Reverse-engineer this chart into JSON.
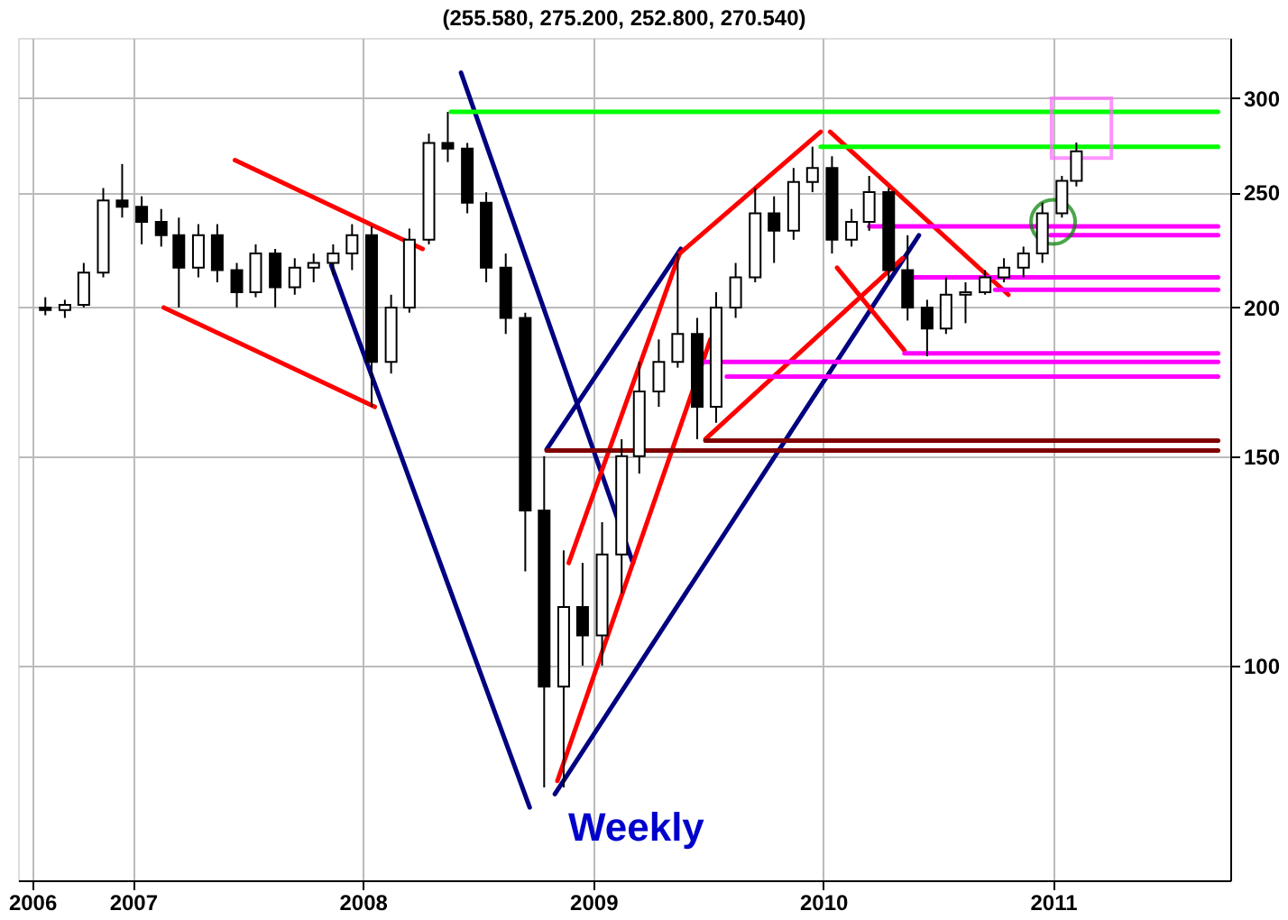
{
  "chart_data": {
    "type": "candlestick",
    "title": "(255.580, 275.200, 252.800, 270.540)",
    "x": [
      "2006-08-15",
      "2006-09-15",
      "2006-10-15",
      "2006-11-15",
      "2006-12-15",
      "2007-01-15",
      "2007-02-15",
      "2007-03-15",
      "2007-04-15",
      "2007-05-15",
      "2007-06-15",
      "2007-07-15",
      "2007-08-15",
      "2007-09-15",
      "2007-10-15",
      "2007-11-15",
      "2007-12-15",
      "2008-01-15",
      "2008-02-15",
      "2008-03-15",
      "2008-04-15",
      "2008-05-15",
      "2008-06-15",
      "2008-07-15",
      "2008-08-15",
      "2008-09-15",
      "2008-10-15",
      "2008-11-15",
      "2008-12-15",
      "2009-01-15",
      "2009-02-15",
      "2009-03-15",
      "2009-04-15",
      "2009-05-15",
      "2009-06-15",
      "2009-07-15",
      "2009-08-15",
      "2009-09-15",
      "2009-10-15",
      "2009-11-15",
      "2009-12-15",
      "2010-01-15",
      "2010-02-15",
      "2010-03-15",
      "2010-04-15",
      "2010-05-15",
      "2010-06-15",
      "2010-07-15",
      "2010-08-15",
      "2010-09-15",
      "2010-10-15",
      "2010-11-15",
      "2010-12-15",
      "2011-01-15",
      "2011-02-07"
    ],
    "ohlc": [
      [
        200,
        204,
        197,
        199
      ],
      [
        199,
        203,
        196,
        201
      ],
      [
        201,
        218,
        200,
        214
      ],
      [
        214,
        252,
        212,
        246
      ],
      [
        246,
        264,
        238,
        243
      ],
      [
        243,
        248,
        226,
        236
      ],
      [
        236,
        242,
        225,
        230
      ],
      [
        230,
        238,
        200,
        216
      ],
      [
        216,
        235,
        212,
        230
      ],
      [
        230,
        235,
        210,
        215
      ],
      [
        215,
        218,
        200,
        206
      ],
      [
        206,
        226,
        204,
        222
      ],
      [
        222,
        224,
        200,
        208
      ],
      [
        208,
        220,
        205,
        216
      ],
      [
        216,
        222,
        210,
        218
      ],
      [
        218,
        226,
        213,
        222
      ],
      [
        222,
        235,
        215,
        230
      ],
      [
        230,
        234,
        165,
        180
      ],
      [
        180,
        205,
        176,
        200
      ],
      [
        200,
        233,
        198,
        228
      ],
      [
        228,
        280,
        226,
        275
      ],
      [
        275,
        292,
        265,
        272
      ],
      [
        272,
        275,
        240,
        245
      ],
      [
        245,
        250,
        210,
        216
      ],
      [
        216,
        222,
        190,
        196
      ],
      [
        196,
        198,
        120,
        135
      ],
      [
        135,
        150,
        79,
        96
      ],
      [
        96,
        125,
        79,
        112
      ],
      [
        112,
        122,
        100,
        106
      ],
      [
        106,
        132,
        100,
        124
      ],
      [
        124,
        155,
        115,
        150
      ],
      [
        150,
        180,
        145,
        170
      ],
      [
        170,
        188,
        165,
        180
      ],
      [
        180,
        222,
        178,
        190
      ],
      [
        190,
        196,
        155,
        165
      ],
      [
        165,
        206,
        160,
        200
      ],
      [
        200,
        218,
        196,
        212
      ],
      [
        212,
        252,
        210,
        240
      ],
      [
        240,
        248,
        218,
        232
      ],
      [
        232,
        262,
        228,
        255
      ],
      [
        255,
        273,
        250,
        262
      ],
      [
        262,
        268,
        222,
        228
      ],
      [
        228,
        242,
        225,
        236
      ],
      [
        236,
        258,
        232,
        250
      ],
      [
        250,
        252,
        210,
        215
      ],
      [
        215,
        230,
        195,
        200
      ],
      [
        200,
        203,
        182,
        192
      ],
      [
        192,
        212,
        190,
        205
      ],
      [
        205,
        210,
        194,
        206
      ],
      [
        206,
        215,
        205,
        212
      ],
      [
        212,
        220,
        210,
        216
      ],
      [
        216,
        225,
        212,
        222
      ],
      [
        222,
        245,
        218,
        240
      ],
      [
        240,
        258,
        238,
        255.58
      ],
      [
        255.58,
        275.2,
        252.8,
        270.54
      ]
    ],
    "series": [
      {
        "type": "line",
        "color": "#ff0000",
        "x": [
          "2007-06-12",
          "2008-04-05"
        ],
        "values": [
          266,
          224
        ]
      },
      {
        "type": "line",
        "color": "#ff0000",
        "x": [
          "2007-02-19",
          "2008-01-20"
        ],
        "values": [
          200,
          165
        ]
      },
      {
        "type": "line",
        "color": "#000080",
        "x": [
          "2007-11-12",
          "2008-09-22"
        ],
        "values": [
          217,
          76
        ]
      },
      {
        "type": "line",
        "color": "#000080",
        "x": [
          "2008-06-05",
          "2009-03-05"
        ],
        "values": [
          315,
          122
        ]
      },
      {
        "type": "line",
        "color": "#000080",
        "x": [
          "2008-10-19",
          "2009-05-20"
        ],
        "values": [
          152,
          224
        ]
      },
      {
        "type": "line",
        "color": "#000080",
        "x": [
          "2008-11-01",
          "2010-06-02"
        ],
        "values": [
          78,
          230
        ]
      },
      {
        "type": "line",
        "color": "#ff0000",
        "x": [
          "2008-11-23",
          "2009-05-18"
        ],
        "values": [
          122,
          222
        ]
      },
      {
        "type": "line",
        "color": "#ff0000",
        "x": [
          "2008-11-05",
          "2009-07-06"
        ],
        "values": [
          80,
          188
        ]
      },
      {
        "type": "line",
        "color": "#ff0000",
        "x": [
          "2009-05-18",
          "2009-12-28"
        ],
        "values": [
          222,
          281
        ]
      },
      {
        "type": "line",
        "color": "#ff0000",
        "x": [
          "2010-01-12",
          "2010-10-22"
        ],
        "values": [
          281,
          205
        ]
      },
      {
        "type": "line",
        "color": "#ff0000",
        "x": [
          "2010-01-23",
          "2010-05-10"
        ],
        "values": [
          216,
          184
        ]
      },
      {
        "type": "line",
        "color": "#ff0000",
        "x": [
          "2009-06-28",
          "2010-05-07"
        ],
        "values": [
          155,
          220
        ]
      },
      {
        "type": "line",
        "color": "#00ff00",
        "x": [
          "2008-05-20",
          "2011-09-20"
        ],
        "values": [
          292,
          292
        ]
      },
      {
        "type": "line",
        "color": "#00ff00",
        "x": [
          "2009-12-28",
          "2011-09-20"
        ],
        "values": [
          273,
          273
        ]
      },
      {
        "type": "line",
        "color": "#ff00ff",
        "x": [
          "2010-03-15",
          "2011-09-20"
        ],
        "values": [
          234,
          234
        ]
      },
      {
        "type": "line",
        "color": "#ff00ff",
        "x": [
          "2010-12-28",
          "2011-09-20"
        ],
        "values": [
          230,
          230
        ]
      },
      {
        "type": "line",
        "color": "#ff00ff",
        "x": [
          "2010-05-20",
          "2011-09-20"
        ],
        "values": [
          212,
          212
        ]
      },
      {
        "type": "line",
        "color": "#ff00ff",
        "x": [
          "2010-10-01",
          "2011-09-20"
        ],
        "values": [
          207,
          207
        ]
      },
      {
        "type": "line",
        "color": "#ff00ff",
        "x": [
          "2010-05-10",
          "2011-09-20"
        ],
        "values": [
          183,
          183
        ]
      },
      {
        "type": "line",
        "color": "#ff00ff",
        "x": [
          "2009-06-25",
          "2011-09-20"
        ],
        "values": [
          180,
          180
        ]
      },
      {
        "type": "line",
        "color": "#ff00ff",
        "x": [
          "2009-08-01",
          "2011-09-20"
        ],
        "values": [
          175,
          175
        ]
      },
      {
        "type": "line",
        "color": "#800000",
        "x": [
          "2009-06-28",
          "2011-09-20"
        ],
        "values": [
          154.6,
          154.6
        ]
      },
      {
        "type": "line",
        "color": "#800000",
        "x": [
          "2008-10-19",
          "2011-09-20"
        ],
        "values": [
          151.6,
          151.6
        ]
      },
      {
        "type": "scatter",
        "marker": "circle",
        "color": "#008000",
        "x": [
          "2011-01-01"
        ],
        "values": [
          236
        ]
      },
      {
        "type": "scatter",
        "marker": "square",
        "color": "#ff66ff",
        "x": [
          "2011-02-15"
        ],
        "values": [
          283
        ]
      }
    ],
    "annotations": [
      "Weekly"
    ],
    "log": true,
    "xlim": [
      "2006-07-17",
      "2011-09-25"
    ],
    "xticks": [
      {
        "value": "2006-07-25",
        "label": "2006"
      },
      {
        "value": "2007-01-01",
        "label": "2007"
      },
      {
        "value": "2008-01-01",
        "label": "2008"
      },
      {
        "value": "2009-01-01",
        "label": "2009"
      },
      {
        "value": "2010-01-01",
        "label": "2010"
      },
      {
        "value": "2011-01-01",
        "label": "2011"
      }
    ],
    "ylim": [
      66,
      337
    ],
    "yticks": [
      100,
      150,
      200,
      250,
      300
    ],
    "grid": true
  }
}
